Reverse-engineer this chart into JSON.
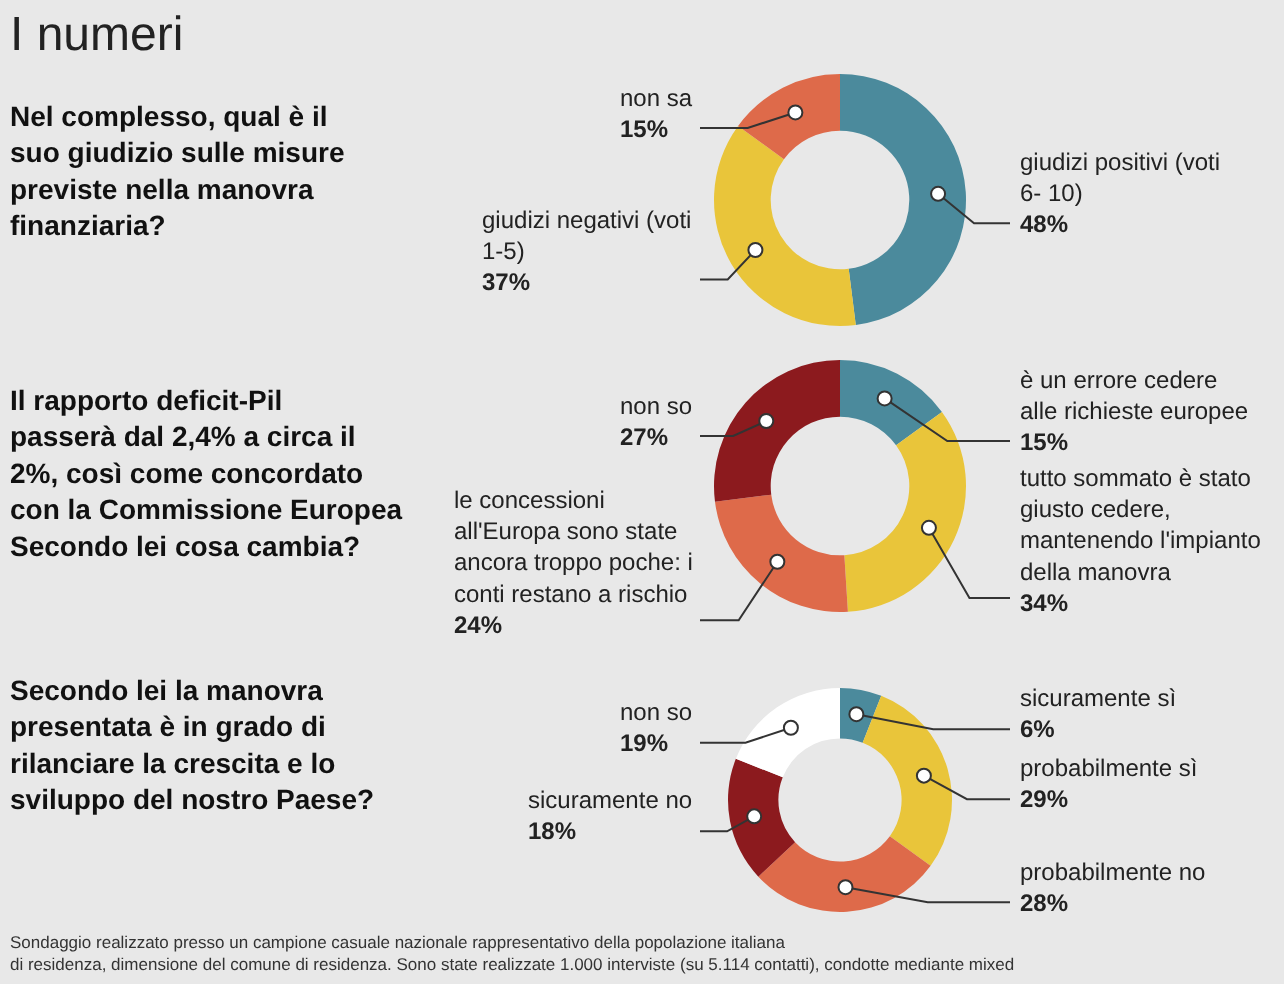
{
  "chart_data": [
    {
      "type": "donut",
      "title": "I numeri",
      "subtitle": "Nel complesso, qual è il suo giudizio sulle misure previste nella manovra finanziaria?",
      "categories": [
        "giudizi positivi (voti 6- 10)",
        "giudizi negativi (voti 1-5)",
        "non sa"
      ],
      "values": [
        48,
        37,
        15
      ],
      "colors": [
        "#4b8a9c",
        "#e9c53a",
        "#de6a4a"
      ],
      "value_labels": [
        "48%",
        "37%",
        "15%"
      ]
    },
    {
      "type": "donut",
      "subtitle": "Il rapporto deficit-Pil passerà dal 2,4% a circa il 2%, così come concordato con la Commissione Europea Secondo lei cosa cambia?",
      "categories": [
        "è un errore cedere alle richieste europee",
        "tutto sommato è stato giusto cedere, mantenendo l'impianto della manovra",
        "le concessioni all'Europa sono state ancora troppo poche: i conti restano a rischio",
        "non so"
      ],
      "values": [
        15,
        34,
        24,
        27
      ],
      "colors": [
        "#4b8a9c",
        "#e9c53a",
        "#de6a4a",
        "#8c1a1e"
      ],
      "value_labels": [
        "15%",
        "34%",
        "24%",
        "27%"
      ]
    },
    {
      "type": "donut",
      "subtitle": "Secondo lei la manovra presentata è in grado di rilanciare la crescita e lo sviluppo del nostro Paese?",
      "categories": [
        "sicuramente sì",
        "probabilmente sì",
        "probabilmente no",
        "sicuramente no",
        "non so"
      ],
      "values": [
        6,
        29,
        28,
        18,
        19
      ],
      "colors": [
        "#4b8a9c",
        "#e9c53a",
        "#de6a4a",
        "#8c1a1e",
        "#ffffff"
      ],
      "value_labels": [
        "6%",
        "29%",
        "28%",
        "18%",
        "19%"
      ],
      "annotations": [
        "Sondaggio realizzato presso un campione casuale nazionale rappresentativo della popolazione italiana\ndi residenza, dimensione del comune di residenza. Sono state realizzate 1.000 interviste (su 5.114 contatti), condotte mediante mixed"
      ]
    }
  ]
}
